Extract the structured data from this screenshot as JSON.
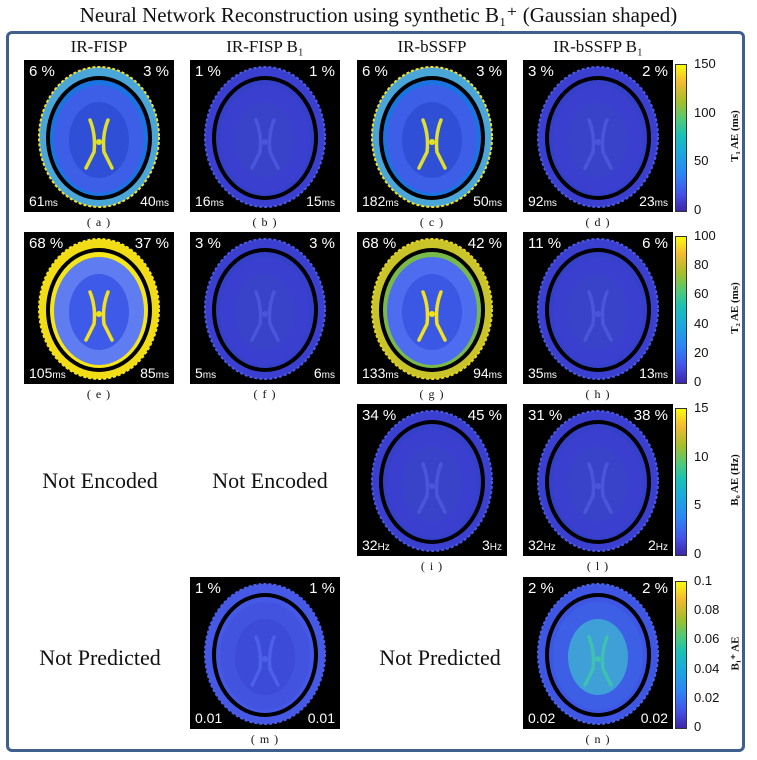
{
  "title": "Neural Network Reconstruction using synthetic B₁⁺ (Gaussian shaped)",
  "columns": [
    "IR-FISP",
    "IR-FISP B₁",
    "IR-bSSFP",
    "IR-bSSFP B₁"
  ],
  "placeholders": {
    "row3": "Not Encoded",
    "row4": "Not Predicted"
  },
  "panels": {
    "a": {
      "caption": "( a )",
      "tl": "6 %",
      "tr": "3 %",
      "bl": "61",
      "bl_unit": "ms",
      "br": "40",
      "br_unit": "ms"
    },
    "b": {
      "caption": "( b )",
      "tl": "1 %",
      "tr": "1 %",
      "bl": "16",
      "bl_unit": "ms",
      "br": "15",
      "br_unit": "ms"
    },
    "c": {
      "caption": "( c )",
      "tl": "6 %",
      "tr": "3 %",
      "bl": "182",
      "bl_unit": "ms",
      "br": "50",
      "br_unit": "ms"
    },
    "d": {
      "caption": "( d )",
      "tl": "3 %",
      "tr": "2 %",
      "bl": "92",
      "bl_unit": "ms",
      "br": "23",
      "br_unit": "ms"
    },
    "e": {
      "caption": "( e )",
      "tl": "68 %",
      "tr": "37 %",
      "bl": "105",
      "bl_unit": "ms",
      "br": "85",
      "br_unit": "ms"
    },
    "f": {
      "caption": "( f )",
      "tl": "3 %",
      "tr": "3 %",
      "bl": "5",
      "bl_unit": "ms",
      "br": "6",
      "br_unit": "ms"
    },
    "g": {
      "caption": "( g )",
      "tl": "68 %",
      "tr": "42 %",
      "bl": "133",
      "bl_unit": "ms",
      "br": "94",
      "br_unit": "ms"
    },
    "h": {
      "caption": "( h )",
      "tl": "11 %",
      "tr": "6 %",
      "bl": "35",
      "bl_unit": "ms",
      "br": "13",
      "br_unit": "ms"
    },
    "i": {
      "caption": "( i )",
      "tl": "34 %",
      "tr": "45 %",
      "bl": "32",
      "bl_unit": "Hz",
      "br": "3",
      "br_unit": "Hz"
    },
    "l": {
      "caption": "( l )",
      "tl": "31 %",
      "tr": "38 %",
      "bl": "32",
      "bl_unit": "Hz",
      "br": "2",
      "br_unit": "Hz"
    },
    "m": {
      "caption": "( m )",
      "tl": "1 %",
      "tr": "1 %",
      "bl": "0.01",
      "bl_unit": "",
      "br": "0.01",
      "br_unit": ""
    },
    "n": {
      "caption": "( n )",
      "tl": "2 %",
      "tr": "2 %",
      "bl": "0.02",
      "bl_unit": "",
      "br": "0.02",
      "br_unit": ""
    }
  },
  "colorbars": [
    {
      "label": "T₁ AE (ms)",
      "ticks": [
        "150",
        "100",
        "50",
        "0"
      ]
    },
    {
      "label": "T₂ AE (ms)",
      "ticks": [
        "100",
        "80",
        "60",
        "40",
        "20",
        "0"
      ]
    },
    {
      "label": "B₀ AE (Hz)",
      "ticks": [
        "15",
        "10",
        "5",
        "0"
      ]
    },
    {
      "label": "B₁⁺ AE",
      "ticks": [
        "0.1",
        "0.08",
        "0.06",
        "0.04",
        "0.02",
        "0"
      ]
    }
  ],
  "colors": {
    "frame": "#3f5f8f",
    "colormap_low": "#3e26a8",
    "colormap_high": "#f9fb0e"
  }
}
